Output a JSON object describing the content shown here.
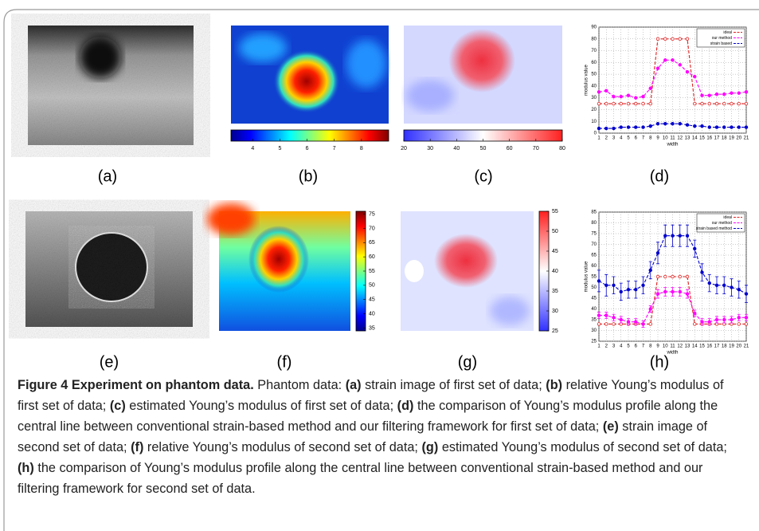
{
  "figure": {
    "panels": [
      {
        "label": "(a)"
      },
      {
        "label": "(b)",
        "colorbar": {
          "orientation": "horizontal",
          "colormap": "jet",
          "lim": [
            3.2,
            9
          ],
          "ticks": [
            4,
            5,
            6,
            7,
            8
          ]
        }
      },
      {
        "label": "(c)",
        "colorbar": {
          "orientation": "horizontal",
          "colormap": "bwr",
          "lim": [
            20,
            80
          ],
          "ticks": [
            20,
            30,
            40,
            50,
            60,
            70,
            80
          ]
        }
      },
      {
        "label": "(d)"
      },
      {
        "label": "(e)"
      },
      {
        "label": "(f)",
        "colorbar": {
          "orientation": "vertical",
          "colormap": "jet",
          "lim": [
            34,
            76
          ],
          "ticks": [
            35,
            40,
            45,
            50,
            55,
            60,
            65,
            70,
            75
          ]
        }
      },
      {
        "label": "(g)",
        "colorbar": {
          "orientation": "vertical",
          "colormap": "bwr",
          "lim": [
            25,
            55
          ],
          "ticks": [
            25,
            30,
            35,
            40,
            45,
            50,
            55
          ]
        }
      },
      {
        "label": "(h)"
      }
    ]
  },
  "chart_data": [
    {
      "type": "line",
      "xlabel": "width",
      "ylabel": "modulus value",
      "grid": true,
      "legend": "upper right",
      "x": [
        1,
        2,
        3,
        4,
        5,
        6,
        7,
        8,
        9,
        10,
        11,
        12,
        13,
        14,
        15,
        16,
        17,
        18,
        19,
        20,
        21
      ],
      "xlim": [
        1,
        21
      ],
      "xticks": [
        1,
        2,
        3,
        4,
        5,
        6,
        7,
        8,
        9,
        10,
        11,
        12,
        13,
        14,
        15,
        16,
        17,
        18,
        19,
        20,
        21
      ],
      "ylim": [
        0,
        90
      ],
      "yticks": [
        0,
        10,
        20,
        30,
        40,
        50,
        60,
        70,
        80,
        90
      ],
      "series": [
        {
          "name": "ideal",
          "color": "#e02020",
          "values": [
            25,
            25,
            25,
            25,
            25,
            25,
            25,
            25,
            80,
            80,
            80,
            80,
            80,
            25,
            25,
            25,
            25,
            25,
            25,
            25,
            25
          ]
        },
        {
          "name": "our method",
          "color": "#ff00ff",
          "values": [
            35,
            36,
            31,
            31,
            32,
            30,
            31,
            38,
            55,
            62,
            62,
            58,
            52,
            48,
            32,
            32,
            33,
            33,
            34,
            34,
            35
          ]
        },
        {
          "name": "strain based",
          "color": "#0000cc",
          "values": [
            4,
            4,
            4,
            5,
            5,
            5,
            5,
            6,
            8,
            8,
            8,
            8,
            7,
            6,
            6,
            5,
            5,
            5,
            5,
            5,
            5
          ]
        }
      ]
    },
    {
      "type": "line",
      "xlabel": "width",
      "ylabel": "modulus value",
      "grid": true,
      "legend": "upper right",
      "x": [
        1,
        2,
        3,
        4,
        5,
        6,
        7,
        8,
        9,
        10,
        11,
        12,
        13,
        14,
        15,
        16,
        17,
        18,
        19,
        20,
        21
      ],
      "xlim": [
        1,
        21
      ],
      "xticks": [
        1,
        2,
        3,
        4,
        5,
        6,
        7,
        8,
        9,
        10,
        11,
        12,
        13,
        14,
        15,
        16,
        17,
        18,
        19,
        20,
        21
      ],
      "ylim": [
        25,
        85
      ],
      "yticks": [
        25,
        30,
        35,
        40,
        45,
        50,
        55,
        60,
        65,
        70,
        75,
        80,
        85
      ],
      "series": [
        {
          "name": "ideal",
          "color": "#e02020",
          "values": [
            33,
            33,
            33,
            33,
            33,
            33,
            33,
            33,
            55,
            55,
            55,
            55,
            55,
            33,
            33,
            33,
            33,
            33,
            33,
            33,
            33
          ]
        },
        {
          "name": "our method",
          "color": "#ff00ff",
          "values": [
            37,
            37,
            36,
            35,
            34,
            34,
            33,
            40,
            47,
            48,
            48,
            48,
            47,
            38,
            34,
            34,
            35,
            35,
            35,
            36,
            36
          ],
          "errors": [
            1.5,
            1.5,
            1.5,
            1.5,
            1.5,
            1.5,
            1.5,
            1.5,
            2,
            2,
            2,
            2,
            2,
            1.5,
            1.5,
            1.5,
            1.5,
            1.5,
            1.5,
            1.5,
            1.5
          ]
        },
        {
          "name": "strain based method",
          "color": "#0000cc",
          "values": [
            53,
            51,
            51,
            48,
            49,
            49,
            51,
            58,
            66,
            74,
            74,
            74,
            74,
            68,
            57,
            52,
            51,
            51,
            50,
            49,
            47
          ],
          "errors": [
            5,
            5,
            4,
            4,
            4,
            4,
            4,
            4,
            5,
            5,
            5,
            5,
            5,
            4,
            4,
            4,
            4,
            4,
            4,
            4,
            4
          ]
        }
      ]
    }
  ],
  "caption": {
    "title": "Figure 4 Experiment on phantom data.",
    "intro": "Phantom data:",
    "items": [
      {
        "label": "(a)",
        "text": "strain image of first set of data;"
      },
      {
        "label": "(b)",
        "text": "relative Young’s modulus of first set of data;"
      },
      {
        "label": "(c)",
        "text": "estimated Young’s modulus of first set of data;"
      },
      {
        "label": "(d)",
        "text": "the comparison of Young’s modulus profile along the central line between conventional strain-based method and our filtering framework for first set of data;"
      },
      {
        "label": "(e)",
        "text": "strain image of second set of data;"
      },
      {
        "label": "(f)",
        "text": "relative Young’s modulus of second set of data;"
      },
      {
        "label": "(g)",
        "text": "estimated Young’s modulus of second set of data;"
      },
      {
        "label": "(h)",
        "text": "the comparison of Young’s modulus profile along the central line between conventional strain-based method and our filtering framework for second set of data."
      }
    ]
  }
}
